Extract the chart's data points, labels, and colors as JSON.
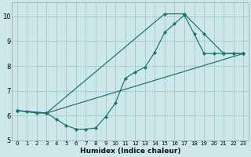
{
  "xlabel": "Humidex (Indice chaleur)",
  "bg_color": "#cce8e8",
  "grid_color": "#aacccc",
  "line_color": "#1a7070",
  "xlim": [
    -0.5,
    23.5
  ],
  "ylim": [
    5.0,
    10.55
  ],
  "xticks": [
    0,
    1,
    2,
    3,
    4,
    5,
    6,
    7,
    8,
    9,
    10,
    11,
    12,
    13,
    14,
    15,
    16,
    17,
    18,
    19,
    20,
    21,
    22,
    23
  ],
  "yticks": [
    5,
    6,
    7,
    8,
    9,
    10
  ],
  "series1_x": [
    0,
    1,
    2,
    3,
    4,
    5,
    6,
    7,
    8,
    9,
    10,
    11,
    12,
    13,
    14,
    15,
    16,
    17,
    18,
    19,
    20,
    21,
    22,
    23
  ],
  "series1_y": [
    6.2,
    6.15,
    6.1,
    6.1,
    5.85,
    5.6,
    5.45,
    5.45,
    5.5,
    5.95,
    6.5,
    7.5,
    7.75,
    7.95,
    8.55,
    9.35,
    9.7,
    10.05,
    9.3,
    8.5,
    8.5,
    8.5,
    8.5,
    8.5
  ],
  "series2_x": [
    0,
    3,
    15,
    17,
    19,
    21,
    22,
    23
  ],
  "series2_y": [
    6.2,
    6.1,
    10.1,
    10.1,
    9.3,
    8.5,
    8.5,
    8.5
  ],
  "series3_x": [
    0,
    3,
    23
  ],
  "series3_y": [
    6.2,
    6.1,
    8.5
  ]
}
